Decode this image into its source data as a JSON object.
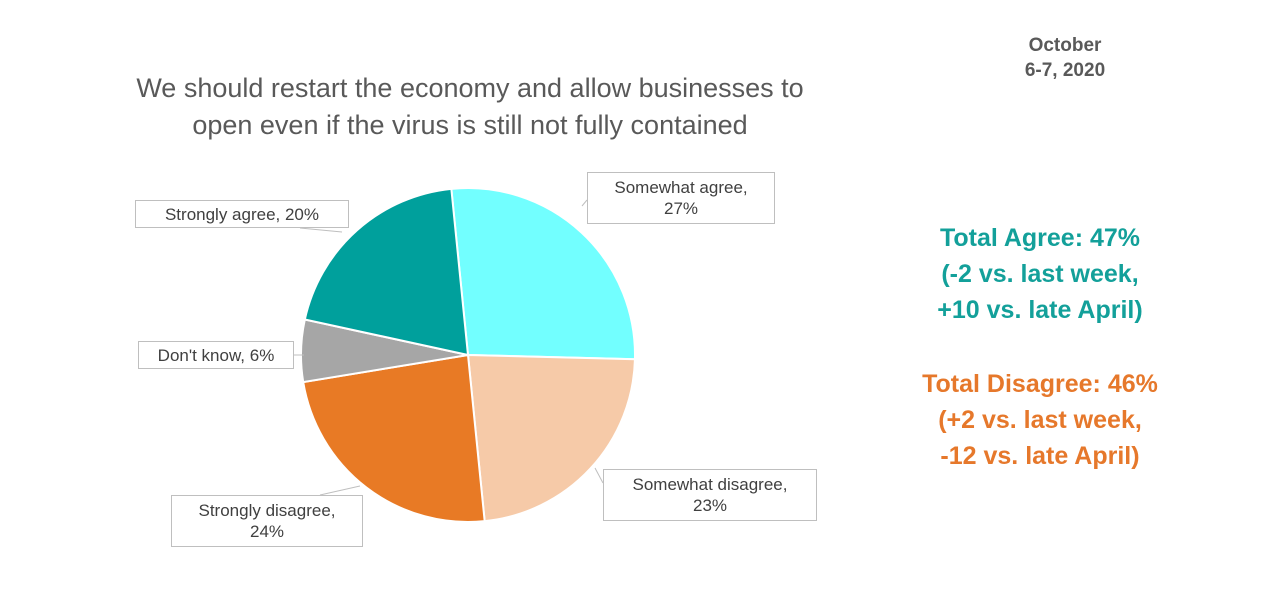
{
  "date_line1": "October",
  "date_line2": "6-7, 2020",
  "chart_data": {
    "type": "pie",
    "title_line1": "We should restart the economy and allow businesses to",
    "title_line2": "open even if the virus is still not fully contained",
    "slices": [
      {
        "label": "Somewhat agree",
        "value": 27,
        "color": "#72ffff"
      },
      {
        "label": "Somewhat disagree",
        "value": 23,
        "color": "#f6caa8"
      },
      {
        "label": "Strongly disagree",
        "value": 24,
        "color": "#e87a25"
      },
      {
        "label": "Don't know",
        "value": 6,
        "color": "#a6a6a6"
      },
      {
        "label": "Strongly agree",
        "value": 20,
        "color": "#00a09c"
      }
    ],
    "callouts": {
      "somewhat_agree": "Somewhat agree,\n27%",
      "somewhat_disagree": "Somewhat disagree,\n23%",
      "strongly_disagree": "Strongly disagree,\n24%",
      "dont_know": "Don't know, 6%",
      "strongly_agree": "Strongly agree, 20%"
    }
  },
  "summary": {
    "agree_line1": "Total Agree: 47%",
    "agree_line2": "(-2 vs. last week,",
    "agree_line3": "+10 vs. late April)",
    "agree_color": "#13a09a",
    "disagree_line1": "Total Disagree: 46%",
    "disagree_line2": "(+2 vs. last week,",
    "disagree_line3": "-12 vs. late April)",
    "disagree_color": "#e6782b"
  }
}
